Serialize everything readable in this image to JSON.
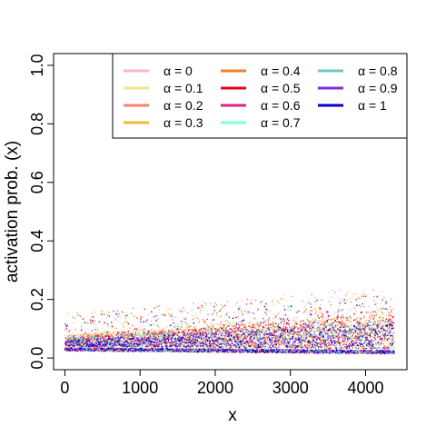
{
  "chart_data": {
    "type": "scatter",
    "title": "",
    "xlabel": "x",
    "ylabel": "activation prob. (x)",
    "xlim": [
      -150,
      4550
    ],
    "ylim": [
      -0.04,
      1.04
    ],
    "x_ticks": [
      0,
      1000,
      2000,
      3000,
      4000
    ],
    "x_tick_labels": [
      "0",
      "1000",
      "2000",
      "3000",
      "4000"
    ],
    "y_ticks": [
      0.0,
      0.2,
      0.4,
      0.6,
      0.8,
      1.0
    ],
    "y_tick_labels": [
      "0.0",
      "0.2",
      "0.4",
      "0.6",
      "0.8",
      "1.0"
    ],
    "grid": false,
    "legend_position": "top-right",
    "n_points": 4380,
    "series": [
      {
        "name": "α = 0",
        "color": "#FFB6C1",
        "baseline_start": 0.03,
        "baseline_end": 0.02,
        "upper_start": 0.07,
        "upper_end": 0.16
      },
      {
        "name": "α = 0.1",
        "color": "#F0E68C",
        "baseline_start": 0.03,
        "baseline_end": 0.02,
        "upper_start": 0.07,
        "upper_end": 0.15
      },
      {
        "name": "α = 0.2",
        "color": "#FA8072",
        "baseline_start": 0.03,
        "baseline_end": 0.02,
        "upper_start": 0.07,
        "upper_end": 0.15
      },
      {
        "name": "α = 0.3",
        "color": "#F4B63B",
        "baseline_start": 0.03,
        "baseline_end": 0.02,
        "upper_start": 0.07,
        "upper_end": 0.14
      },
      {
        "name": "α = 0.4",
        "color": "#F07F2A",
        "baseline_start": 0.03,
        "baseline_end": 0.02,
        "upper_start": 0.06,
        "upper_end": 0.14
      },
      {
        "name": "α = 0.5",
        "color": "#E8001C",
        "baseline_start": 0.03,
        "baseline_end": 0.02,
        "upper_start": 0.06,
        "upper_end": 0.13
      },
      {
        "name": "α = 0.6",
        "color": "#E0218A",
        "baseline_start": 0.03,
        "baseline_end": 0.02,
        "upper_start": 0.06,
        "upper_end": 0.13
      },
      {
        "name": "α = 0.7",
        "color": "#7FFFD4",
        "baseline_start": 0.03,
        "baseline_end": 0.02,
        "upper_start": 0.06,
        "upper_end": 0.12
      },
      {
        "name": "α = 0.8",
        "color": "#6BC9C6",
        "baseline_start": 0.03,
        "baseline_end": 0.02,
        "upper_start": 0.06,
        "upper_end": 0.12
      },
      {
        "name": "α = 0.9",
        "color": "#8A2BE2",
        "baseline_start": 0.03,
        "baseline_end": 0.02,
        "upper_start": 0.05,
        "upper_end": 0.11
      },
      {
        "name": "α = 1",
        "color": "#0000CD",
        "baseline_start": 0.03,
        "baseline_end": 0.02,
        "upper_start": 0.05,
        "upper_end": 0.11
      }
    ]
  }
}
